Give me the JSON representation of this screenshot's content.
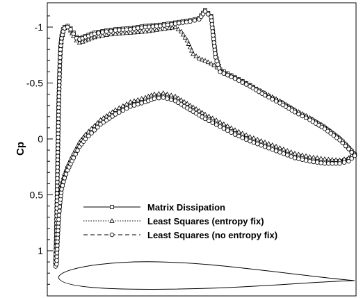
{
  "chart_data": {
    "type": "line",
    "title": "",
    "ylabel": "Cp",
    "xlabel": "",
    "y_reversed": true,
    "ylim": [
      -1.15,
      1.38
    ],
    "xlim": [
      0,
      1
    ],
    "y_ticks": [
      -1,
      -0.5,
      0,
      0.5,
      1
    ],
    "y_tick_labels": [
      "-1",
      "-0.5",
      "0",
      "0.5",
      "1"
    ],
    "grid": false,
    "legend_position": "bottom-center",
    "legend": [
      {
        "label": "Matrix Dissipation",
        "line": "solid",
        "marker": "square"
      },
      {
        "label": "Least Squares (entropy fix)",
        "line": "dotted",
        "marker": "triangle"
      },
      {
        "label": "Least Squares (no entropy fix)",
        "line": "dashed",
        "marker": "circle"
      }
    ],
    "series": [
      {
        "name": "Matrix Dissipation",
        "upper": [
          [
            0.0,
            1.12
          ],
          [
            0.002,
            0.9
          ],
          [
            0.004,
            0.6
          ],
          [
            0.006,
            0.3
          ],
          [
            0.008,
            0.0
          ],
          [
            0.01,
            -0.3
          ],
          [
            0.013,
            -0.6
          ],
          [
            0.016,
            -0.82
          ],
          [
            0.02,
            -0.92
          ],
          [
            0.025,
            -0.98
          ],
          [
            0.03,
            -1.0
          ],
          [
            0.04,
            -1.01
          ],
          [
            0.05,
            -0.99
          ],
          [
            0.06,
            -0.95
          ],
          [
            0.07,
            -0.91
          ],
          [
            0.08,
            -0.9
          ],
          [
            0.1,
            -0.92
          ],
          [
            0.13,
            -0.95
          ],
          [
            0.17,
            -0.97
          ],
          [
            0.2,
            -0.98
          ],
          [
            0.25,
            -0.99
          ],
          [
            0.3,
            -1.01
          ],
          [
            0.35,
            -1.02
          ],
          [
            0.4,
            -1.04
          ],
          [
            0.45,
            -1.06
          ],
          [
            0.48,
            -1.08
          ],
          [
            0.5,
            -1.15
          ],
          [
            0.52,
            -1.1
          ],
          [
            0.535,
            -0.75
          ],
          [
            0.55,
            -0.62
          ],
          [
            0.6,
            -0.55
          ],
          [
            0.65,
            -0.48
          ],
          [
            0.7,
            -0.4
          ],
          [
            0.75,
            -0.33
          ],
          [
            0.8,
            -0.25
          ],
          [
            0.85,
            -0.18
          ],
          [
            0.9,
            -0.1
          ],
          [
            0.95,
            0.0
          ],
          [
            0.98,
            0.08
          ],
          [
            1.0,
            0.14
          ]
        ],
        "lower": [
          [
            0.003,
            1.1
          ],
          [
            0.006,
            0.9
          ],
          [
            0.01,
            0.7
          ],
          [
            0.015,
            0.55
          ],
          [
            0.02,
            0.43
          ],
          [
            0.03,
            0.33
          ],
          [
            0.04,
            0.26
          ],
          [
            0.06,
            0.15
          ],
          [
            0.08,
            0.05
          ],
          [
            0.1,
            -0.02
          ],
          [
            0.15,
            -0.15
          ],
          [
            0.2,
            -0.24
          ],
          [
            0.25,
            -0.31
          ],
          [
            0.3,
            -0.35
          ],
          [
            0.33,
            -0.38
          ],
          [
            0.36,
            -0.39
          ],
          [
            0.4,
            -0.36
          ],
          [
            0.45,
            -0.28
          ],
          [
            0.5,
            -0.2
          ],
          [
            0.55,
            -0.13
          ],
          [
            0.6,
            -0.06
          ],
          [
            0.65,
            0.0
          ],
          [
            0.7,
            0.05
          ],
          [
            0.75,
            0.1
          ],
          [
            0.8,
            0.15
          ],
          [
            0.85,
            0.18
          ],
          [
            0.9,
            0.2
          ],
          [
            0.95,
            0.2
          ],
          [
            0.98,
            0.18
          ],
          [
            1.0,
            0.14
          ]
        ]
      },
      {
        "name": "Least Squares (entropy fix)",
        "upper": [
          [
            0.0,
            1.1
          ],
          [
            0.002,
            0.9
          ],
          [
            0.004,
            0.6
          ],
          [
            0.006,
            0.3
          ],
          [
            0.008,
            0.0
          ],
          [
            0.01,
            -0.3
          ],
          [
            0.013,
            -0.6
          ],
          [
            0.016,
            -0.8
          ],
          [
            0.02,
            -0.9
          ],
          [
            0.025,
            -0.96
          ],
          [
            0.03,
            -0.99
          ],
          [
            0.04,
            -1.0
          ],
          [
            0.05,
            -0.97
          ],
          [
            0.06,
            -0.92
          ],
          [
            0.07,
            -0.88
          ],
          [
            0.08,
            -0.86
          ],
          [
            0.1,
            -0.88
          ],
          [
            0.13,
            -0.91
          ],
          [
            0.17,
            -0.93
          ],
          [
            0.2,
            -0.94
          ],
          [
            0.25,
            -0.95
          ],
          [
            0.3,
            -0.96
          ],
          [
            0.35,
            -0.98
          ],
          [
            0.38,
            -0.99
          ],
          [
            0.4,
            -1.0
          ],
          [
            0.42,
            -0.96
          ],
          [
            0.44,
            -0.88
          ],
          [
            0.46,
            -0.76
          ],
          [
            0.48,
            -0.72
          ],
          [
            0.5,
            -0.7
          ],
          [
            0.53,
            -0.66
          ],
          [
            0.56,
            -0.6
          ],
          [
            0.6,
            -0.55
          ],
          [
            0.65,
            -0.48
          ],
          [
            0.7,
            -0.41
          ],
          [
            0.75,
            -0.34
          ],
          [
            0.8,
            -0.26
          ],
          [
            0.85,
            -0.19
          ],
          [
            0.9,
            -0.11
          ],
          [
            0.95,
            -0.01
          ],
          [
            0.98,
            0.07
          ],
          [
            1.0,
            0.13
          ]
        ],
        "lower": [
          [
            0.003,
            1.08
          ],
          [
            0.006,
            0.88
          ],
          [
            0.01,
            0.68
          ],
          [
            0.015,
            0.53
          ],
          [
            0.02,
            0.41
          ],
          [
            0.03,
            0.31
          ],
          [
            0.04,
            0.24
          ],
          [
            0.06,
            0.13
          ],
          [
            0.08,
            0.03
          ],
          [
            0.1,
            -0.04
          ],
          [
            0.15,
            -0.17
          ],
          [
            0.2,
            -0.26
          ],
          [
            0.25,
            -0.33
          ],
          [
            0.3,
            -0.37
          ],
          [
            0.33,
            -0.4
          ],
          [
            0.36,
            -0.41
          ],
          [
            0.4,
            -0.38
          ],
          [
            0.45,
            -0.3
          ],
          [
            0.5,
            -0.22
          ],
          [
            0.55,
            -0.15
          ],
          [
            0.6,
            -0.08
          ],
          [
            0.65,
            -0.02
          ],
          [
            0.7,
            0.03
          ],
          [
            0.75,
            0.08
          ],
          [
            0.8,
            0.13
          ],
          [
            0.85,
            0.16
          ],
          [
            0.9,
            0.18
          ],
          [
            0.95,
            0.19
          ],
          [
            0.98,
            0.17
          ],
          [
            1.0,
            0.13
          ]
        ]
      },
      {
        "name": "Least Squares (no entropy fix)",
        "upper": [
          [
            0.0,
            1.14
          ],
          [
            0.002,
            0.92
          ],
          [
            0.004,
            0.62
          ],
          [
            0.006,
            0.32
          ],
          [
            0.008,
            0.02
          ],
          [
            0.01,
            -0.28
          ],
          [
            0.013,
            -0.58
          ],
          [
            0.016,
            -0.8
          ],
          [
            0.02,
            -0.9
          ],
          [
            0.025,
            -0.96
          ],
          [
            0.03,
            -0.99
          ],
          [
            0.04,
            -1.0
          ],
          [
            0.05,
            -0.98
          ],
          [
            0.06,
            -0.94
          ],
          [
            0.07,
            -0.9
          ],
          [
            0.08,
            -0.89
          ],
          [
            0.1,
            -0.91
          ],
          [
            0.13,
            -0.94
          ],
          [
            0.17,
            -0.96
          ],
          [
            0.2,
            -0.97
          ],
          [
            0.25,
            -0.98
          ],
          [
            0.3,
            -1.0
          ],
          [
            0.35,
            -1.01
          ],
          [
            0.4,
            -1.03
          ],
          [
            0.45,
            -1.05
          ],
          [
            0.48,
            -1.07
          ],
          [
            0.5,
            -1.14
          ],
          [
            0.52,
            -1.09
          ],
          [
            0.535,
            -0.73
          ],
          [
            0.55,
            -0.6
          ],
          [
            0.6,
            -0.54
          ],
          [
            0.65,
            -0.47
          ],
          [
            0.7,
            -0.39
          ],
          [
            0.75,
            -0.32
          ],
          [
            0.8,
            -0.24
          ],
          [
            0.85,
            -0.17
          ],
          [
            0.9,
            -0.09
          ],
          [
            0.95,
            0.01
          ],
          [
            0.98,
            0.09
          ],
          [
            1.0,
            0.15
          ]
        ],
        "lower": [
          [
            0.003,
            1.12
          ],
          [
            0.006,
            0.92
          ],
          [
            0.01,
            0.72
          ],
          [
            0.015,
            0.57
          ],
          [
            0.02,
            0.45
          ],
          [
            0.03,
            0.35
          ],
          [
            0.04,
            0.28
          ],
          [
            0.06,
            0.17
          ],
          [
            0.08,
            0.07
          ],
          [
            0.1,
            0.0
          ],
          [
            0.15,
            -0.13
          ],
          [
            0.2,
            -0.22
          ],
          [
            0.25,
            -0.29
          ],
          [
            0.3,
            -0.33
          ],
          [
            0.33,
            -0.36
          ],
          [
            0.36,
            -0.37
          ],
          [
            0.4,
            -0.34
          ],
          [
            0.45,
            -0.26
          ],
          [
            0.5,
            -0.18
          ],
          [
            0.55,
            -0.11
          ],
          [
            0.6,
            -0.04
          ],
          [
            0.65,
            0.02
          ],
          [
            0.7,
            0.07
          ],
          [
            0.75,
            0.12
          ],
          [
            0.8,
            0.17
          ],
          [
            0.85,
            0.2
          ],
          [
            0.9,
            0.22
          ],
          [
            0.95,
            0.22
          ],
          [
            0.98,
            0.2
          ],
          [
            1.0,
            0.15
          ]
        ]
      }
    ]
  }
}
